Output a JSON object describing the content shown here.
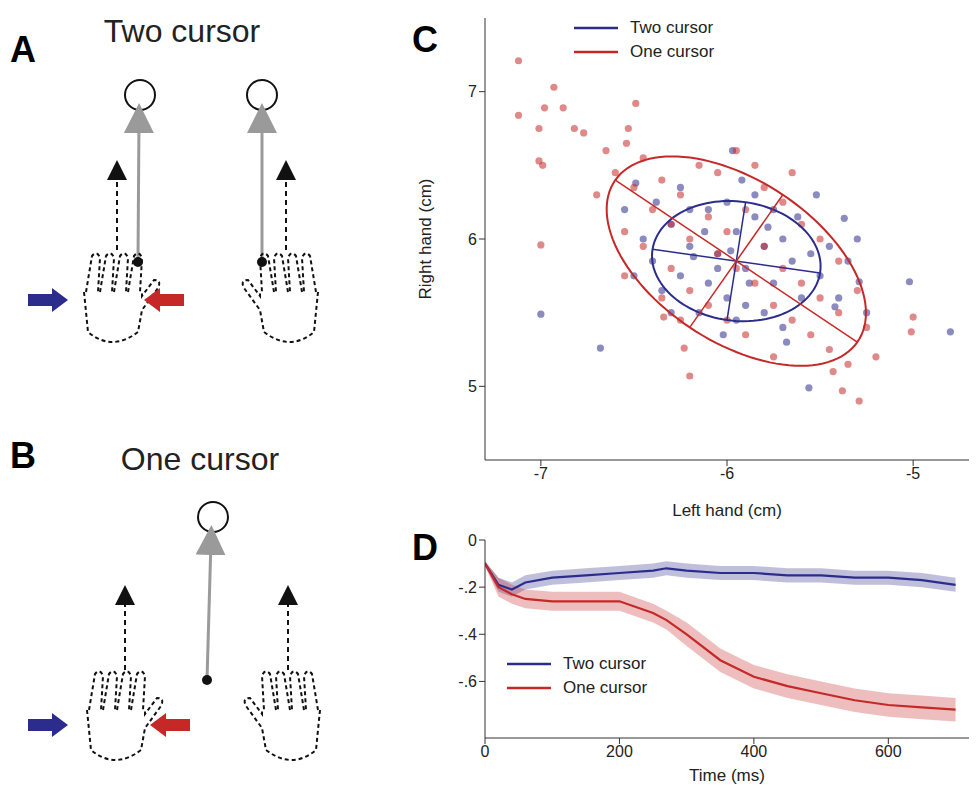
{
  "diagrams": [
    {
      "panel_label": "A",
      "title": "Two cursor"
    },
    {
      "panel_label": "B",
      "title": "One cursor"
    }
  ],
  "chart_data": [
    {
      "type": "scatter",
      "panel_label": "C",
      "x_label": "Left hand (cm)",
      "y_label": "Right hand (cm)",
      "xlim": [
        -7.3,
        -4.7
      ],
      "xticks": [
        -7,
        -6,
        -5
      ],
      "ylim": [
        4.5,
        7.5
      ],
      "yticks": [
        5,
        6,
        7
      ],
      "legend": "upper left",
      "series": [
        {
          "name": "Two cursor",
          "color": "#2c2c8c",
          "values": [
            [
              -7.0,
              5.49
            ],
            [
              -6.68,
              5.26
            ],
            [
              -5.97,
              6.6
            ],
            [
              -5.56,
              4.99
            ],
            [
              -5.29,
              5.71
            ],
            [
              -5.02,
              5.71
            ],
            [
              -4.8,
              5.37
            ],
            [
              -6.49,
              6.38
            ],
            [
              -5.37,
              6.14
            ],
            [
              -5.42,
              5.54
            ],
            [
              -6.3,
              6.1
            ],
            [
              -6.2,
              5.95
            ],
            [
              -6.1,
              6.2
            ],
            [
              -6.05,
              5.9
            ],
            [
              -5.95,
              6.05
            ],
            [
              -5.9,
              5.8
            ],
            [
              -5.85,
              6.15
            ],
            [
              -5.8,
              5.95
            ],
            [
              -5.75,
              5.7
            ],
            [
              -5.7,
              6.0
            ],
            [
              -5.65,
              5.85
            ],
            [
              -5.6,
              5.6
            ],
            [
              -5.55,
              5.9
            ],
            [
              -5.5,
              5.75
            ],
            [
              -6.4,
              5.85
            ],
            [
              -6.35,
              5.65
            ],
            [
              -6.25,
              5.75
            ],
            [
              -6.15,
              5.5
            ],
            [
              -6.1,
              5.7
            ],
            [
              -6.0,
              5.6
            ],
            [
              -5.95,
              5.45
            ],
            [
              -5.9,
              5.55
            ],
            [
              -5.8,
              5.5
            ],
            [
              -5.7,
              5.4
            ],
            [
              -6.2,
              6.2
            ],
            [
              -6.0,
              6.25
            ],
            [
              -5.85,
              6.3
            ],
            [
              -5.75,
              6.2
            ],
            [
              -6.45,
              6.0
            ],
            [
              -6.3,
              5.5
            ],
            [
              -6.05,
              5.8
            ],
            [
              -5.98,
              5.92
            ],
            [
              -6.12,
              6.05
            ],
            [
              -5.88,
              5.7
            ],
            [
              -5.62,
              6.15
            ],
            [
              -5.45,
              5.95
            ],
            [
              -5.4,
              5.6
            ],
            [
              -5.35,
              5.85
            ],
            [
              -6.5,
              5.75
            ],
            [
              -6.25,
              6.35
            ],
            [
              -5.92,
              6.4
            ],
            [
              -6.55,
              6.2
            ],
            [
              -5.68,
              5.3
            ],
            [
              -6.02,
              5.35
            ],
            [
              -5.78,
              6.08
            ],
            [
              -6.18,
              5.88
            ],
            [
              -5.52,
              6.3
            ],
            [
              -6.38,
              6.25
            ],
            [
              -5.3,
              6.0
            ],
            [
              -5.25,
              5.5
            ]
          ],
          "ellipse": {
            "center": [
              -5.95,
              5.85
            ],
            "axis1": [
              0.45,
              -0.08
            ],
            "axis2": [
              -0.05,
              -0.4
            ]
          }
        },
        {
          "name": "One cursor",
          "color": "#c62828",
          "values": [
            [
              -7.12,
              7.21
            ],
            [
              -7.12,
              6.84
            ],
            [
              -7.01,
              6.75
            ],
            [
              -6.98,
              6.89
            ],
            [
              -6.93,
              7.03
            ],
            [
              -6.88,
              6.89
            ],
            [
              -6.82,
              6.75
            ],
            [
              -6.77,
              6.72
            ],
            [
              -7.01,
              6.53
            ],
            [
              -6.99,
              6.5
            ],
            [
              -7.0,
              5.96
            ],
            [
              -6.53,
              6.75
            ],
            [
              -6.54,
              6.65
            ],
            [
              -6.49,
              6.92
            ],
            [
              -6.23,
              5.26
            ],
            [
              -6.34,
              5.47
            ],
            [
              -6.2,
              5.07
            ],
            [
              -5.38,
              4.97
            ],
            [
              -5.29,
              4.9
            ],
            [
              -5.43,
              5.1
            ],
            [
              -5.01,
              5.37
            ],
            [
              -5.0,
              5.47
            ],
            [
              -6.6,
              6.45
            ],
            [
              -6.5,
              6.35
            ],
            [
              -6.45,
              6.55
            ],
            [
              -6.4,
              6.2
            ],
            [
              -6.35,
              6.4
            ],
            [
              -6.3,
              6.1
            ],
            [
              -6.25,
              6.3
            ],
            [
              -6.2,
              6.0
            ],
            [
              -6.15,
              6.5
            ],
            [
              -6.1,
              6.15
            ],
            [
              -6.05,
              5.9
            ],
            [
              -6.0,
              6.05
            ],
            [
              -5.95,
              5.8
            ],
            [
              -5.9,
              6.2
            ],
            [
              -5.85,
              5.7
            ],
            [
              -5.8,
              5.95
            ],
            [
              -5.75,
              5.55
            ],
            [
              -5.7,
              5.8
            ],
            [
              -5.65,
              5.45
            ],
            [
              -5.6,
              5.7
            ],
            [
              -5.55,
              5.35
            ],
            [
              -5.5,
              5.6
            ],
            [
              -5.45,
              5.25
            ],
            [
              -5.4,
              5.5
            ],
            [
              -5.35,
              5.15
            ],
            [
              -6.55,
              6.05
            ],
            [
              -6.45,
              5.95
            ],
            [
              -6.3,
              5.8
            ],
            [
              -6.2,
              5.65
            ],
            [
              -6.1,
              5.55
            ],
            [
              -6.0,
              5.45
            ],
            [
              -5.9,
              5.35
            ],
            [
              -5.8,
              6.35
            ],
            [
              -5.7,
              6.25
            ],
            [
              -5.6,
              6.1
            ],
            [
              -5.5,
              6.0
            ],
            [
              -5.4,
              5.85
            ],
            [
              -6.65,
              6.6
            ],
            [
              -6.7,
              6.3
            ],
            [
              -6.55,
              5.75
            ],
            [
              -6.35,
              5.6
            ],
            [
              -5.3,
              5.65
            ],
            [
              -5.25,
              5.4
            ],
            [
              -6.05,
              6.45
            ],
            [
              -5.95,
              6.6
            ],
            [
              -5.85,
              6.5
            ],
            [
              -5.65,
              6.45
            ],
            [
              -6.25,
              5.45
            ],
            [
              -5.75,
              5.2
            ],
            [
              -5.2,
              5.2
            ]
          ],
          "ellipse": {
            "center": [
              -5.95,
              5.85
            ],
            "axis1": [
              -0.65,
              0.55
            ],
            "axis2": [
              0.25,
              0.45
            ]
          }
        }
      ]
    },
    {
      "type": "line",
      "panel_label": "D",
      "x_label": "Time (ms)",
      "x": [
        0,
        20,
        40,
        60,
        100,
        150,
        200,
        250,
        270,
        300,
        350,
        400,
        450,
        500,
        550,
        600,
        650,
        700
      ],
      "xlim": [
        0,
        720
      ],
      "xticks": [
        0,
        200,
        400,
        600
      ],
      "ylim": [
        -0.84,
        0
      ],
      "yticks": [
        0,
        {
          "value": -0.2,
          "label": "-.2"
        },
        {
          "value": -0.4,
          "label": "-.4"
        },
        {
          "value": -0.6,
          "label": "-.6"
        }
      ],
      "legend": "lower left",
      "series": [
        {
          "name": "Two cursor",
          "color": "#2c2c8c",
          "values": [
            -0.1,
            -0.19,
            -0.21,
            -0.18,
            -0.16,
            -0.15,
            -0.14,
            -0.13,
            -0.12,
            -0.13,
            -0.14,
            -0.14,
            -0.15,
            -0.15,
            -0.16,
            -0.16,
            -0.17,
            -0.19
          ],
          "error": [
            0.01,
            0.03,
            0.03,
            0.03,
            0.03,
            0.03,
            0.03,
            0.03,
            0.03,
            0.03,
            0.03,
            0.03,
            0.03,
            0.03,
            0.03,
            0.03,
            0.03,
            0.03
          ]
        },
        {
          "name": "One cursor",
          "color": "#c62828",
          "values": [
            -0.1,
            -0.2,
            -0.23,
            -0.25,
            -0.26,
            -0.26,
            -0.26,
            -0.31,
            -0.34,
            -0.4,
            -0.51,
            -0.58,
            -0.62,
            -0.65,
            -0.68,
            -0.7,
            -0.71,
            -0.72
          ],
          "error": [
            0.01,
            0.04,
            0.04,
            0.04,
            0.04,
            0.04,
            0.04,
            0.04,
            0.04,
            0.05,
            0.05,
            0.05,
            0.05,
            0.05,
            0.05,
            0.05,
            0.05,
            0.05
          ]
        }
      ]
    }
  ]
}
